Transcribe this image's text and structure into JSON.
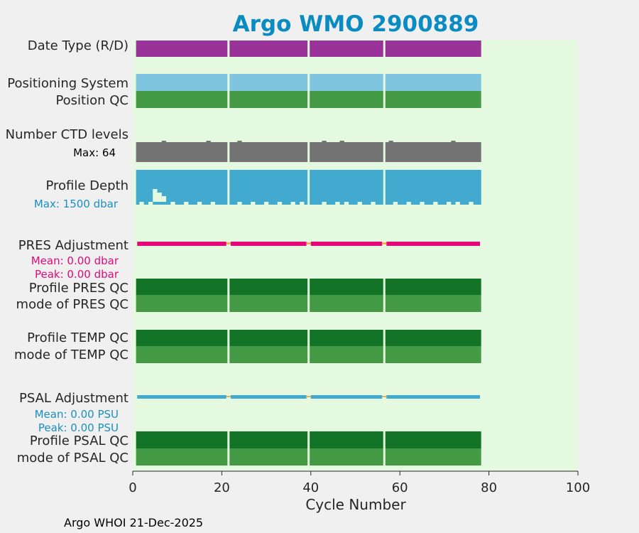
{
  "chart_data": {
    "type": "bar",
    "title": "Argo WMO 2900889",
    "xlabel": "Cycle Number",
    "xlim": [
      0,
      100
    ],
    "xticks": [
      0,
      20,
      40,
      60,
      80,
      100
    ],
    "cycle_range": [
      1,
      78
    ],
    "segments": [
      [
        1,
        21
      ],
      [
        22,
        39
      ],
      [
        40,
        56
      ],
      [
        57,
        78
      ]
    ],
    "rows": [
      {
        "id": "date-type",
        "label": "Date Type (R/D)",
        "color": "#993399",
        "kind": "band"
      },
      {
        "id": "positioning-system",
        "label": "Positioning System",
        "color": "#7fc5e0",
        "kind": "band"
      },
      {
        "id": "position-qc",
        "label": "Position QC",
        "color": "#449944",
        "kind": "band"
      },
      {
        "id": "number-ctd-levels",
        "label": "Number CTD levels",
        "color": "#737373",
        "kind": "levels",
        "note": "Max: 64"
      },
      {
        "id": "profile-depth",
        "label": "Profile Depth",
        "color": "#42a9cf",
        "kind": "depth",
        "note": "Max: 1500 dbar",
        "note_color": "#1a8fc0"
      },
      {
        "id": "pres-adjustment",
        "label": "PRES Adjustment",
        "color": "#e6087a",
        "kind": "adjustment",
        "note_color": "#e6087a",
        "mean": "Mean: 0.00 dbar",
        "peak": "Peak: 0.00 dbar"
      },
      {
        "id": "profile-pres-qc",
        "label": "Profile PRES QC",
        "color": "#137427",
        "kind": "band"
      },
      {
        "id": "mode-pres-qc",
        "label": "mode of PRES QC",
        "color": "#449944",
        "kind": "band"
      },
      {
        "id": "profile-temp-qc",
        "label": "Profile TEMP QC",
        "color": "#137427",
        "kind": "band"
      },
      {
        "id": "mode-temp-qc",
        "label": "mode of TEMP QC",
        "color": "#449944",
        "kind": "band"
      },
      {
        "id": "psal-adjustment",
        "label": "PSAL Adjustment",
        "color": "#42a9cf",
        "kind": "adjustment",
        "note_color": "#1a8fc0",
        "mean": "Mean: 0.00 PSU",
        "peak": "Peak: 0.00 PSU"
      },
      {
        "id": "profile-psal-qc",
        "label": "Profile PSAL QC",
        "color": "#137427",
        "kind": "band"
      },
      {
        "id": "mode-psal-qc",
        "label": "mode of PSAL QC",
        "color": "#449944",
        "kind": "band"
      }
    ],
    "adjustment_gap_color": "#f0b050",
    "plot_background": "#e5f9e0",
    "title_color": "#0a8bc2",
    "footer": "Argo WHOI 21-Dec-2025"
  }
}
